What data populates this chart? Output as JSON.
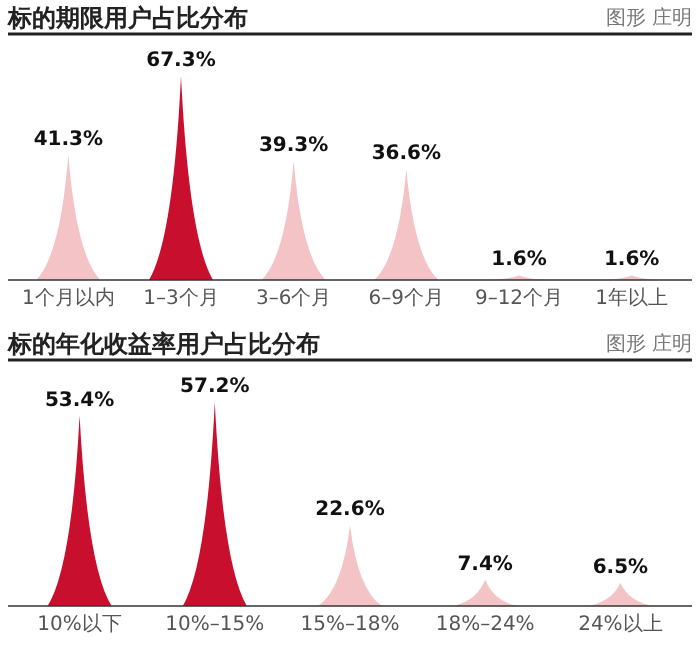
{
  "chart_data": [
    {
      "type": "bar",
      "title": "标的期限用户占比分布",
      "annotations": [
        "图形 庄明"
      ],
      "categories": [
        "1个月以内",
        "1–3个月",
        "3–6个月",
        "6–9个月",
        "9–12个月",
        "1年以上"
      ],
      "values": [
        41.3,
        67.3,
        39.3,
        36.6,
        1.6,
        1.6
      ],
      "value_labels": [
        "41.3%",
        "67.3%",
        "39.3%",
        "36.6%",
        "1.6%",
        "1.6%"
      ],
      "colors": [
        "#f4c3c6",
        "#c8102e",
        "#f4c3c6",
        "#f4c3c6",
        "#f4c3c6",
        "#f4c3c6"
      ]
    },
    {
      "type": "bar",
      "title": "标的年化收益率用户占比分布",
      "annotations": [
        "图形 庄明"
      ],
      "categories": [
        "10%以下",
        "10%–15%",
        "15%–18%",
        "18%–24%",
        "24%以上"
      ],
      "values": [
        53.4,
        57.2,
        22.6,
        7.4,
        6.5
      ],
      "value_labels": [
        "53.4%",
        "57.2%",
        "22.6%",
        "7.4%",
        "6.5%"
      ],
      "colors": [
        "#c8102e",
        "#c8102e",
        "#f4c3c6",
        "#f4c3c6",
        "#f4c3c6"
      ]
    }
  ]
}
